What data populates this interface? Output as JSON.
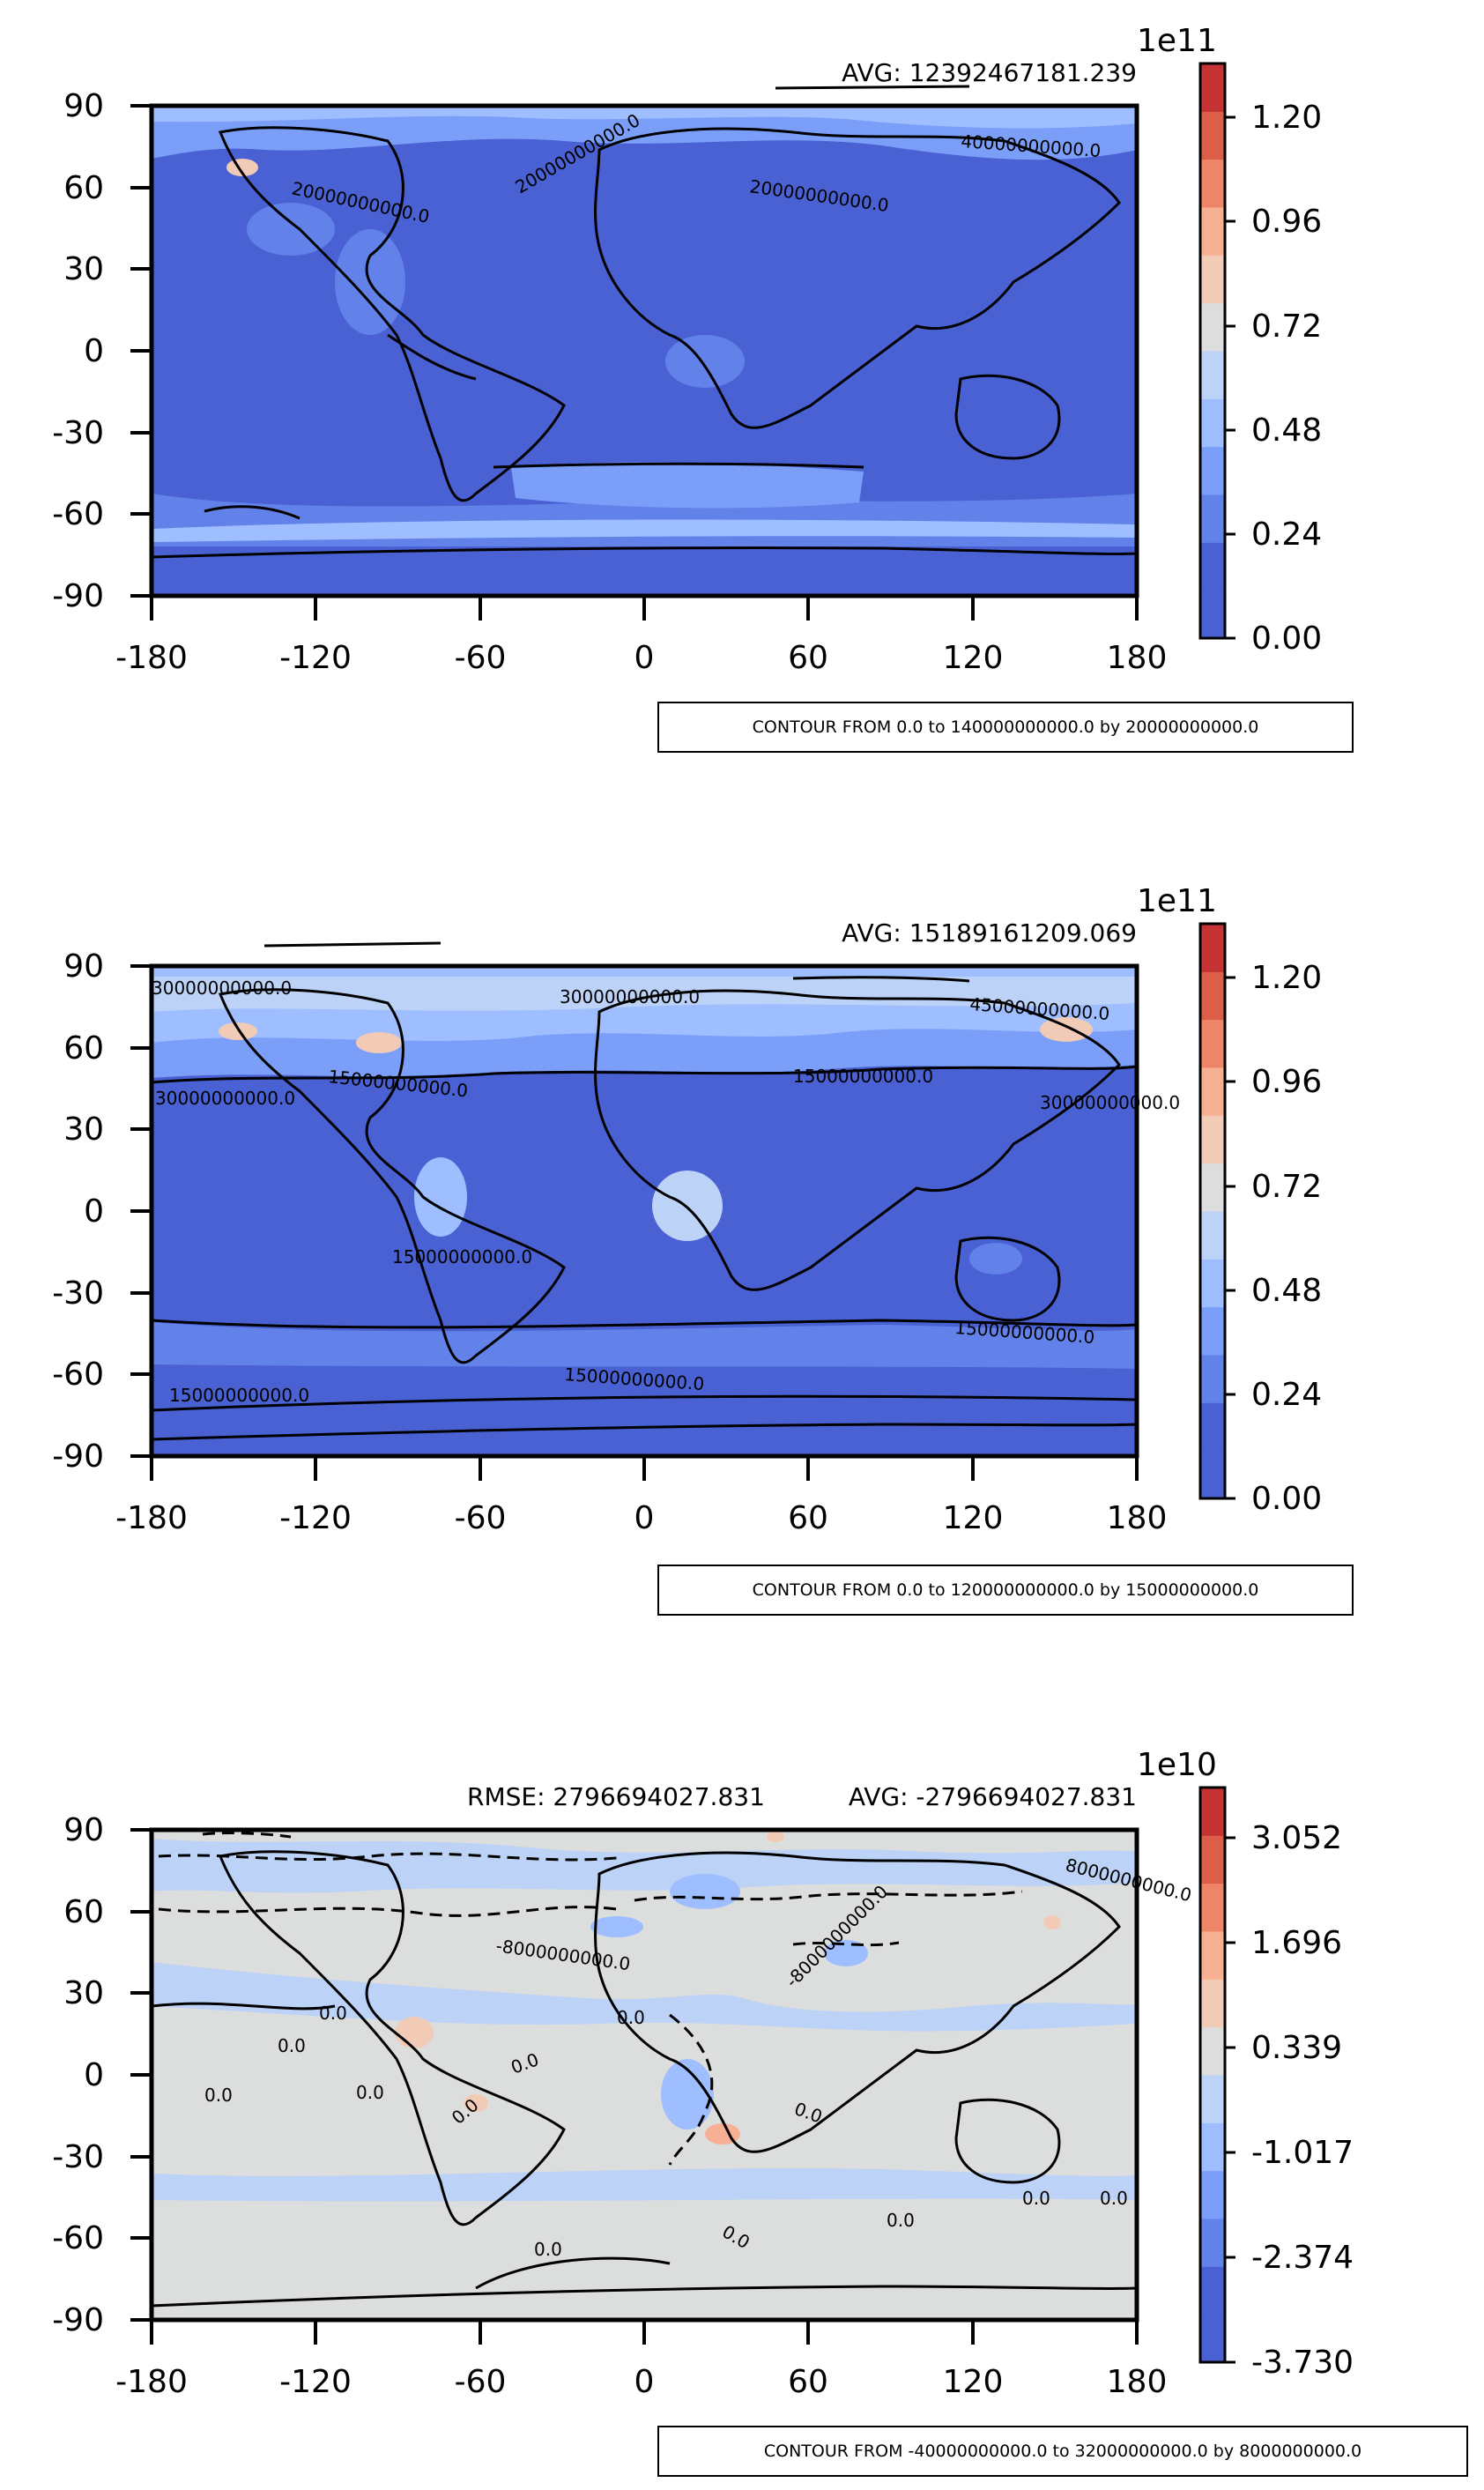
{
  "colors": {
    "colormap": [
      "#4961d2",
      "#6282ea",
      "#7b9ff9",
      "#9ebeff",
      "#bcd2f7",
      "#dcdddd",
      "#f2cbb7",
      "#f7b093",
      "#ee8468",
      "#dc5d4a",
      "#c53334"
    ],
    "ocean_low": "#4961d2",
    "land": "#000000"
  },
  "chart_data": [
    {
      "type": "heatmap",
      "panel": "test",
      "title": "AVG: 12392467181.239",
      "x_ticks": [
        -180,
        -120,
        -60,
        0,
        60,
        120,
        180
      ],
      "y_ticks": [
        90,
        60,
        30,
        0,
        -30,
        -60,
        -90
      ],
      "xlim": [
        -180,
        180
      ],
      "ylim": [
        -90,
        90
      ],
      "contour_labels": [
        "20000000000.0",
        "20000000000.0",
        "20000000000.0",
        "40000000000.0"
      ],
      "colorbar": {
        "exponent": "1e11",
        "ticks": [
          "0.00",
          "0.24",
          "0.48",
          "0.72",
          "0.96",
          "1.20"
        ],
        "levels": [
          0.0,
          0.2,
          0.4,
          0.6,
          0.8,
          1.0,
          1.2,
          1.4
        ],
        "range": [
          0.0,
          1.4
        ]
      },
      "contour_note": "CONTOUR FROM 0.0 to 140000000000.0 by 20000000000.0"
    },
    {
      "type": "heatmap",
      "panel": "reference",
      "title": "AVG: 15189161209.069",
      "x_ticks": [
        -180,
        -120,
        -60,
        0,
        60,
        120,
        180
      ],
      "y_ticks": [
        90,
        60,
        30,
        0,
        -30,
        -60,
        -90
      ],
      "xlim": [
        -180,
        180
      ],
      "ylim": [
        -90,
        90
      ],
      "contour_labels": [
        "30000000000.0",
        "30000000000.0",
        "45000000000.0",
        "15000000000.0",
        "15000000000.0",
        "15000000000.0",
        "15000000000.0",
        "15000000000.0",
        "15000000000.0",
        "30000000000.0",
        "30000000000.0"
      ],
      "colorbar": {
        "exponent": "1e11",
        "ticks": [
          "0.00",
          "0.24",
          "0.48",
          "0.72",
          "0.96",
          "1.20"
        ],
        "levels": [
          0.0,
          0.15,
          0.3,
          0.45,
          0.6,
          0.75,
          0.9,
          1.05,
          1.2
        ],
        "range": [
          0.0,
          1.4
        ]
      },
      "contour_note": "CONTOUR FROM 0.0 to 120000000000.0 by 15000000000.0"
    },
    {
      "type": "heatmap",
      "panel": "difference",
      "title": "AVG: -2796694027.831",
      "left_title": "RMSE: 2796694027.831",
      "x_ticks": [
        -180,
        -120,
        -60,
        0,
        60,
        120,
        180
      ],
      "y_ticks": [
        90,
        60,
        30,
        0,
        -30,
        -60,
        -90
      ],
      "xlim": [
        -180,
        180
      ],
      "ylim": [
        -90,
        90
      ],
      "contour_labels": [
        "0.0",
        "0.0",
        "0.0",
        "0.0",
        "0.0",
        "0.0",
        "0.0",
        "0.0",
        "0.0",
        "0.0",
        "0.0",
        "0.0",
        "0.0",
        "-8000000000.0",
        "-8000000000.0",
        "8000000000.0"
      ],
      "colorbar": {
        "exponent": "1e10",
        "ticks": [
          "-3.730",
          "-2.374",
          "-1.017",
          "0.339",
          "1.696",
          "3.052"
        ],
        "levels": [
          -4.0,
          -3.2,
          -2.4,
          -1.6,
          -0.8,
          0.0,
          0.8,
          1.6,
          2.4,
          3.2
        ],
        "range": [
          -3.73,
          3.73
        ]
      },
      "contour_note": "CONTOUR FROM -40000000000.0 to 32000000000.0 by 8000000000.0"
    }
  ]
}
